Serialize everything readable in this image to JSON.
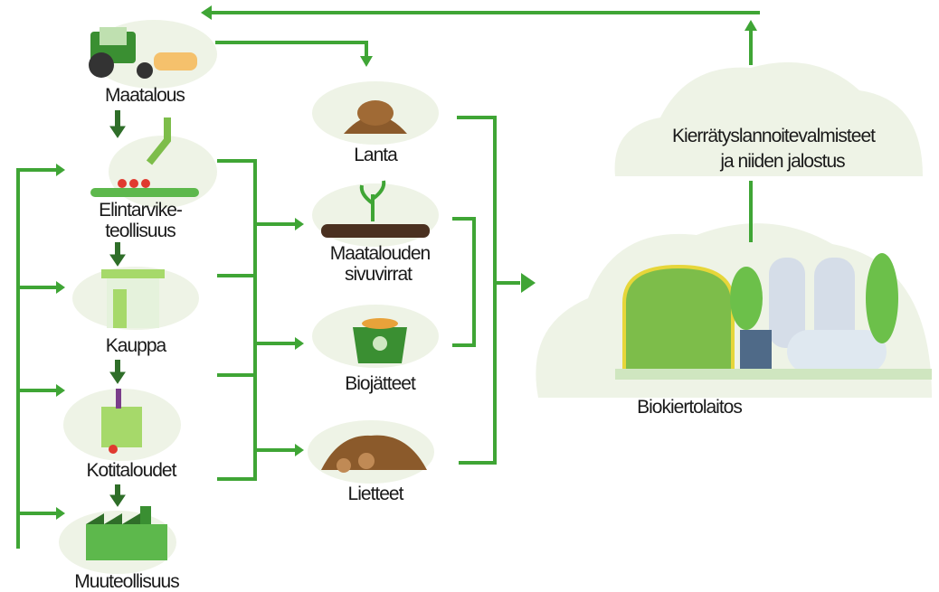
{
  "nodes": [
    {
      "lines": [
        "Maatalous"
      ]
    },
    {
      "lines": [
        "Elintarvike-",
        "teollisuus"
      ]
    },
    {
      "lines": [
        "Kauppa"
      ]
    },
    {
      "lines": [
        "Kotitaloudet"
      ]
    },
    {
      "lines": [
        "Muuteollisuus"
      ]
    },
    {
      "lines": [
        "Lanta"
      ]
    },
    {
      "lines": [
        "Maatalouden",
        "sivuvirrat"
      ]
    },
    {
      "lines": [
        "Biojätteet"
      ]
    },
    {
      "lines": [
        "Lietteet"
      ]
    },
    {
      "lines": [
        "Kierrätyslannoitevalmisteet",
        "ja niiden jalostus"
      ]
    },
    {
      "lines": [
        "Biokiertolaitos"
      ]
    }
  ]
}
